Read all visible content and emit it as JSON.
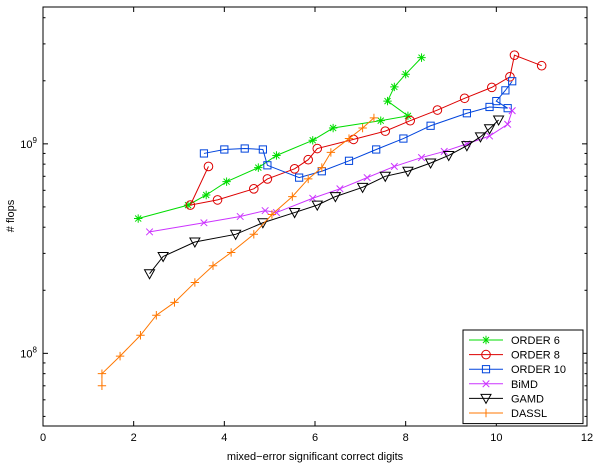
{
  "chart_data": {
    "type": "line",
    "title": "",
    "xlabel": "mixed−error significant correct digits",
    "ylabel": "# flops",
    "xlim": [
      0,
      12
    ],
    "ylim": [
      45000000,
      4500000000
    ],
    "y_scale": "log",
    "grid": false,
    "legend_position": "bottom-right",
    "x_ticks": [
      0,
      2,
      4,
      6,
      8,
      10,
      12
    ],
    "x_tick_labels": [
      "0",
      "2",
      "4",
      "6",
      "8",
      "10",
      "12"
    ],
    "y_ticks": [
      100000000,
      1000000000
    ],
    "series": [
      {
        "name": "ORDER 6",
        "color": "#00dd00",
        "marker": "asterisk",
        "points": [
          [
            2.1,
            440000000
          ],
          [
            3.2,
            510000000
          ],
          [
            3.6,
            570000000
          ],
          [
            4.05,
            660000000
          ],
          [
            4.75,
            770000000
          ],
          [
            5.15,
            880000000
          ],
          [
            5.95,
            1040000000
          ],
          [
            6.4,
            1190000000
          ],
          [
            7.45,
            1290000000
          ],
          [
            8.05,
            1360000000
          ],
          [
            7.6,
            1600000000
          ],
          [
            7.75,
            1870000000
          ],
          [
            8.0,
            2150000000
          ],
          [
            8.35,
            2580000000
          ]
        ]
      },
      {
        "name": "ORDER 8",
        "color": "#dd0000",
        "marker": "circle",
        "points": [
          [
            3.65,
            780000000
          ],
          [
            3.25,
            510000000
          ],
          [
            3.85,
            540000000
          ],
          [
            4.65,
            610000000
          ],
          [
            4.95,
            680000000
          ],
          [
            5.55,
            760000000
          ],
          [
            5.85,
            840000000
          ],
          [
            6.05,
            950000000
          ],
          [
            6.85,
            1050000000
          ],
          [
            7.55,
            1150000000
          ],
          [
            8.1,
            1290000000
          ],
          [
            8.7,
            1450000000
          ],
          [
            9.3,
            1650000000
          ],
          [
            9.9,
            1860000000
          ],
          [
            10.3,
            2090000000
          ],
          [
            10.4,
            2650000000
          ],
          [
            11.0,
            2360000000
          ]
        ]
      },
      {
        "name": "ORDER 10",
        "color": "#0044dd",
        "marker": "square",
        "points": [
          [
            3.55,
            900000000
          ],
          [
            4.0,
            940000000
          ],
          [
            4.45,
            950000000
          ],
          [
            4.85,
            940000000
          ],
          [
            4.95,
            790000000
          ],
          [
            5.65,
            690000000
          ],
          [
            6.15,
            740000000
          ],
          [
            6.75,
            830000000
          ],
          [
            7.35,
            940000000
          ],
          [
            7.95,
            1060000000
          ],
          [
            8.55,
            1220000000
          ],
          [
            9.35,
            1400000000
          ],
          [
            9.85,
            1500000000
          ],
          [
            10.25,
            1480000000
          ],
          [
            10.0,
            1600000000
          ],
          [
            10.2,
            1800000000
          ],
          [
            10.35,
            1990000000
          ]
        ]
      },
      {
        "name": "BiMD",
        "color": "#cc33ff",
        "marker": "x",
        "points": [
          [
            2.35,
            380000000
          ],
          [
            3.55,
            420000000
          ],
          [
            4.35,
            450000000
          ],
          [
            4.9,
            480000000
          ],
          [
            5.15,
            470000000
          ],
          [
            5.95,
            550000000
          ],
          [
            6.55,
            610000000
          ],
          [
            7.15,
            690000000
          ],
          [
            7.75,
            780000000
          ],
          [
            8.35,
            860000000
          ],
          [
            8.85,
            920000000
          ],
          [
            9.35,
            1000000000
          ],
          [
            9.85,
            1090000000
          ],
          [
            10.25,
            1240000000
          ],
          [
            10.35,
            1440000000
          ]
        ]
      },
      {
        "name": "GAMD",
        "color": "#000000",
        "marker": "triangle-down",
        "points": [
          [
            2.35,
            240000000
          ],
          [
            2.65,
            290000000
          ],
          [
            3.35,
            340000000
          ],
          [
            4.25,
            370000000
          ],
          [
            4.85,
            420000000
          ],
          [
            5.55,
            470000000
          ],
          [
            6.05,
            510000000
          ],
          [
            6.45,
            560000000
          ],
          [
            7.05,
            620000000
          ],
          [
            7.55,
            700000000
          ],
          [
            8.05,
            740000000
          ],
          [
            8.55,
            810000000
          ],
          [
            8.95,
            880000000
          ],
          [
            9.35,
            980000000
          ],
          [
            9.65,
            1080000000
          ],
          [
            9.85,
            1180000000
          ],
          [
            10.05,
            1300000000
          ]
        ]
      },
      {
        "name": "DASSL",
        "color": "#ff7700",
        "marker": "plus",
        "points": [
          [
            1.3,
            70000000
          ],
          [
            1.3,
            80000000
          ],
          [
            1.7,
            97000000
          ],
          [
            2.15,
            122000000
          ],
          [
            2.5,
            152000000
          ],
          [
            2.9,
            175000000
          ],
          [
            3.35,
            218000000
          ],
          [
            3.75,
            262000000
          ],
          [
            4.15,
            303000000
          ],
          [
            4.65,
            370000000
          ],
          [
            5.05,
            460000000
          ],
          [
            5.5,
            560000000
          ],
          [
            5.85,
            680000000
          ],
          [
            6.15,
            770000000
          ],
          [
            6.35,
            910000000
          ],
          [
            6.75,
            1060000000
          ],
          [
            7.05,
            1190000000
          ],
          [
            7.3,
            1330000000
          ]
        ]
      }
    ]
  }
}
